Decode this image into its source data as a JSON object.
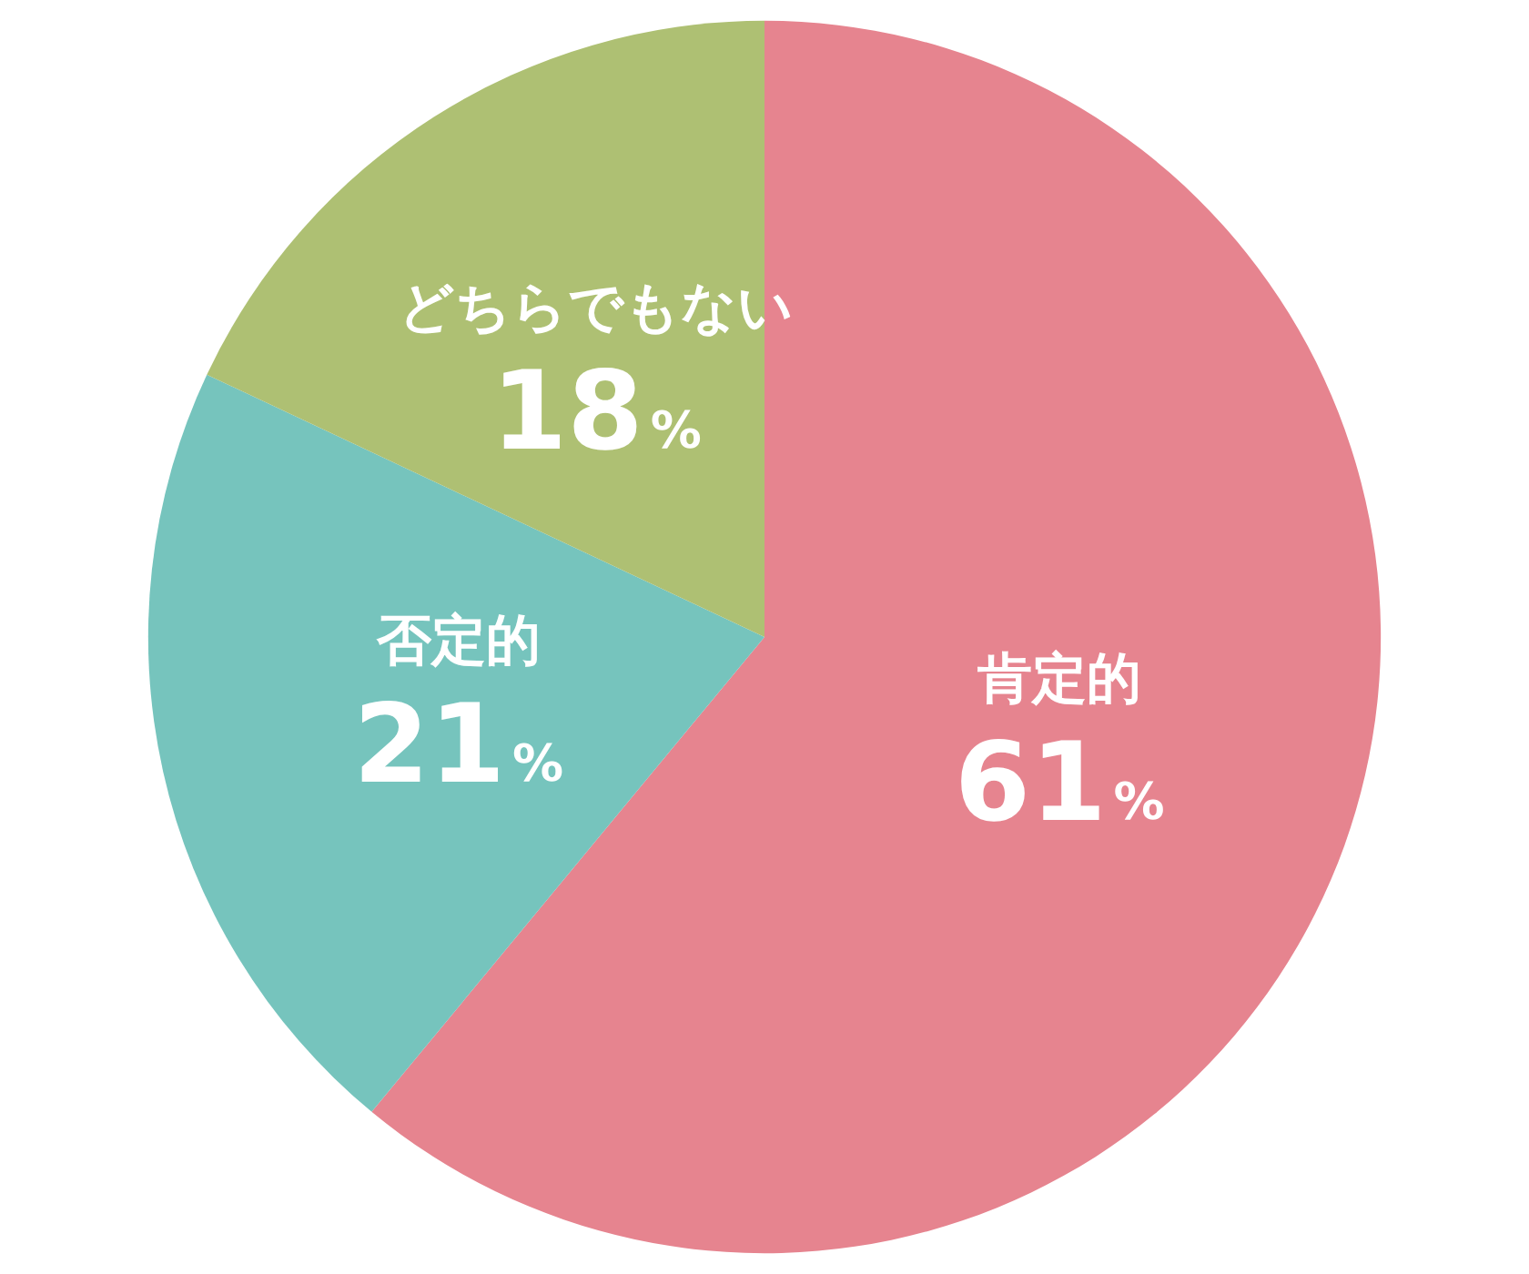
{
  "chart_data": {
    "type": "pie",
    "categories": [
      "肯定的",
      "否定的",
      "どちらでもない"
    ],
    "values": [
      61,
      21,
      18
    ],
    "colors": [
      "#e6848f",
      "#76c4bd",
      "#aec073"
    ],
    "value_labels": [
      "61%",
      "21%",
      "18%"
    ],
    "legend": false
  }
}
